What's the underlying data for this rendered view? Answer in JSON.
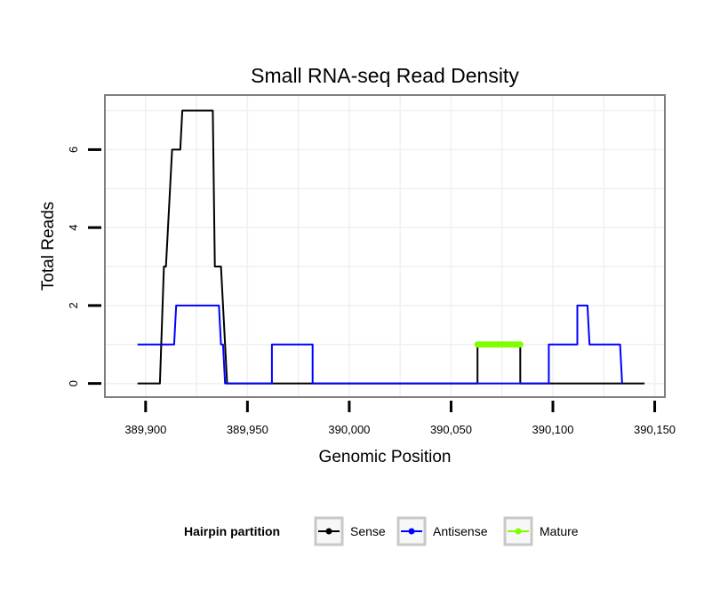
{
  "chart_data": {
    "type": "line",
    "title": "Small RNA-seq Read Density",
    "xlabel": "Genomic Position",
    "ylabel": "Total Reads",
    "xlim": [
      389880,
      390155
    ],
    "ylim": [
      -0.35,
      7.4
    ],
    "grid": true,
    "x_ticks": [
      389900,
      389950,
      390000,
      390050,
      390100,
      390150
    ],
    "x_tick_labels": [
      "389,900",
      "389,950",
      "390,000",
      "390,050",
      "390,100",
      "390,150"
    ],
    "y_ticks": [
      0,
      2,
      4,
      6
    ],
    "y_tick_labels": [
      "0",
      "2",
      "4",
      "6"
    ],
    "legend": {
      "title": "Hairpin partition",
      "position": "bottom",
      "entries": [
        {
          "name": "Sense",
          "color": "#000000"
        },
        {
          "name": "Antisense",
          "color": "#0000ff"
        },
        {
          "name": "Mature",
          "color": "#7fff00"
        }
      ]
    },
    "series": [
      {
        "name": "Sense",
        "color": "#000000",
        "width": 1,
        "x": [
          389896,
          389907,
          389909,
          389910,
          389913,
          389917,
          389918,
          389933,
          389934,
          389937,
          389940,
          390063,
          390063,
          390084,
          390084,
          390145
        ],
        "y": [
          0,
          0,
          3,
          3,
          6,
          6,
          7,
          7,
          3,
          3,
          0,
          0,
          1,
          1,
          0,
          0
        ]
      },
      {
        "name": "Antisense",
        "color": "#0000ff",
        "width": 1,
        "x": [
          389896,
          389914,
          389915,
          389936,
          389937,
          389938,
          389939,
          389962,
          389962,
          389982,
          389982,
          390098,
          390098,
          390112,
          390112,
          390117,
          390118,
          390133,
          390134
        ],
        "y": [
          1,
          1,
          2,
          2,
          1,
          1,
          0,
          0,
          1,
          1,
          0,
          0,
          1,
          1,
          2,
          2,
          1,
          1,
          0
        ]
      },
      {
        "name": "Mature",
        "color": "#7fff00",
        "width": 3,
        "x": [
          390063,
          390084
        ],
        "y": [
          1,
          1
        ]
      }
    ]
  }
}
